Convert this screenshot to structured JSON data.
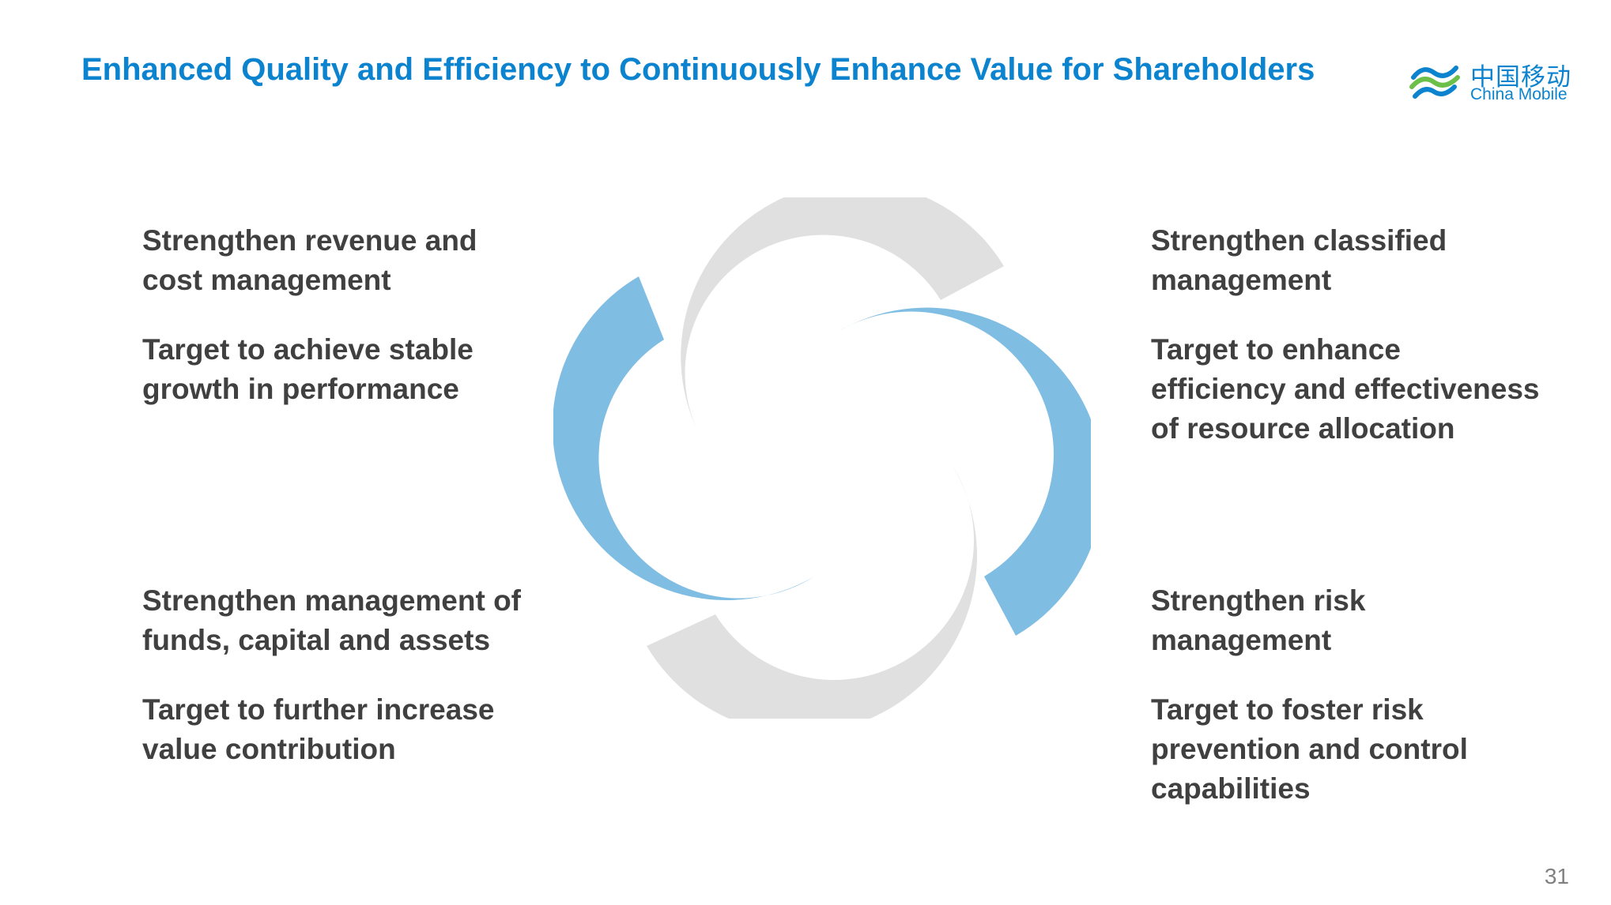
{
  "title": "Enhanced Quality and Efficiency to Continuously Enhance Value for Shareholders",
  "logo": {
    "chinese_text": "中国移动",
    "english_text": "China Mobile",
    "brand_color": "#0b83cf"
  },
  "quadrants": {
    "top_left": {
      "heading": "Strengthen revenue and\ncost management",
      "target": "Target to achieve stable\ngrowth in performance"
    },
    "top_right": {
      "heading": "Strengthen classified\nmanagement",
      "target": "Target to enhance\nefficiency and effectiveness\nof resource allocation"
    },
    "bottom_left": {
      "heading": "Strengthen management of\nfunds, capital and assets",
      "target": "Target to further increase\nvalue contribution"
    },
    "bottom_right": {
      "heading": "Strengthen risk\nmanagement",
      "target": "Target to foster risk\nprevention and control\ncapabilities"
    }
  },
  "diagram": {
    "arc_colors": {
      "blue": "#7fbde2",
      "grey": "#e0e0e0"
    }
  },
  "page_number": "31"
}
